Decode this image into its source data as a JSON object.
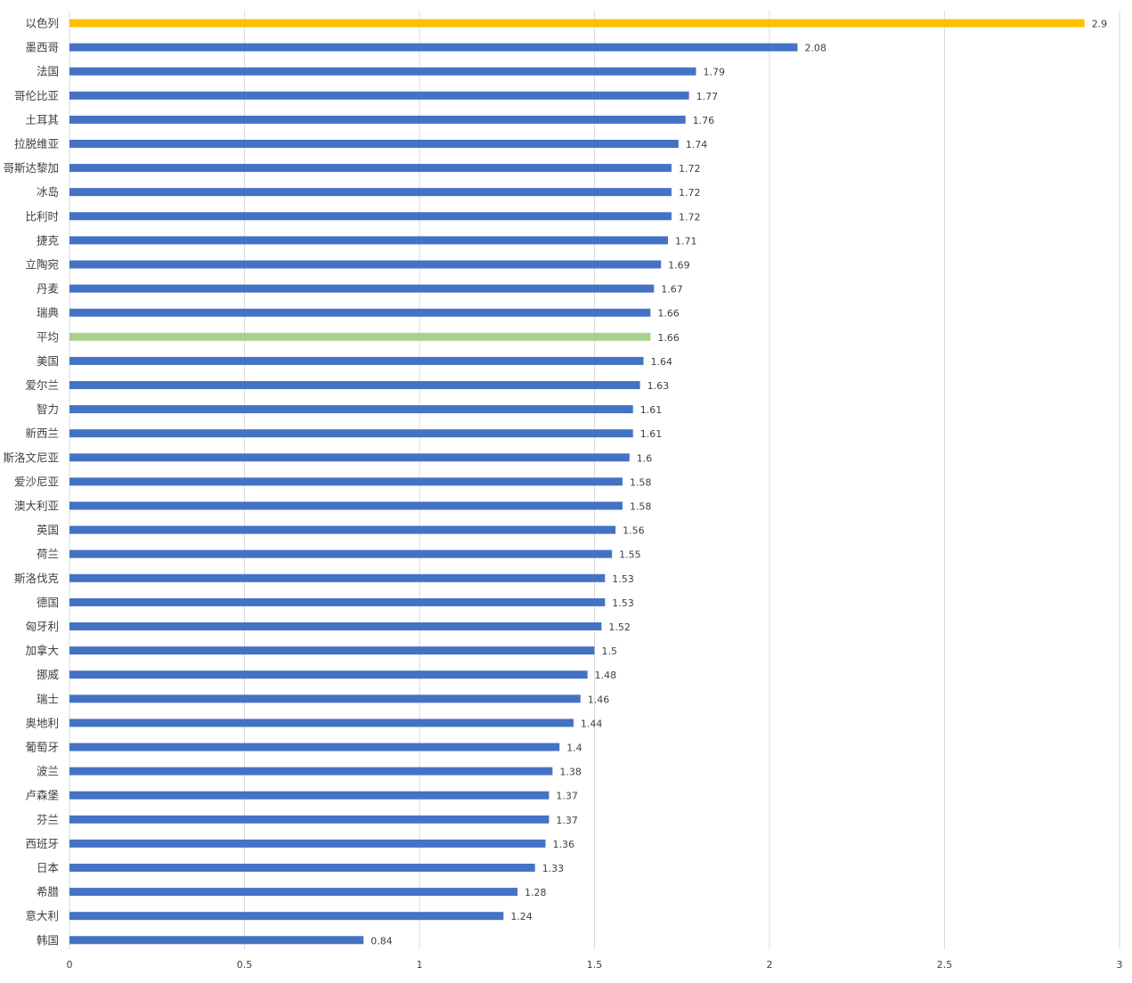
{
  "chart_data": {
    "type": "bar",
    "orientation": "horizontal",
    "title": "",
    "xlabel": "",
    "ylabel": "",
    "xlim": [
      0,
      3
    ],
    "x_ticks": [
      0,
      0.5,
      1,
      1.5,
      2,
      2.5,
      3
    ],
    "grid": "vertical",
    "legend": "none",
    "colors": {
      "default": "#4472C4",
      "highlight": "#FFC000",
      "average": "#A9D18E",
      "gridline": "#D9D9D9",
      "text": "#404040"
    },
    "categories": [
      "以色列",
      "墨西哥",
      "法国",
      "哥伦比亚",
      "土耳其",
      "拉脱维亚",
      "哥斯达黎加",
      "冰岛",
      "比利时",
      "捷克",
      "立陶宛",
      "丹麦",
      "瑞典",
      "平均",
      "美国",
      "爱尔兰",
      "智力",
      "新西兰",
      "斯洛文尼亚",
      "爱沙尼亚",
      "澳大利亚",
      "英国",
      "荷兰",
      "斯洛伐克",
      "德国",
      "匈牙利",
      "加拿大",
      "挪威",
      "瑞士",
      "奥地利",
      "葡萄牙",
      "波兰",
      "卢森堡",
      "芬兰",
      "西班牙",
      "日本",
      "希腊",
      "意大利",
      "韩国"
    ],
    "values": [
      2.9,
      2.08,
      1.79,
      1.77,
      1.76,
      1.74,
      1.72,
      1.72,
      1.72,
      1.71,
      1.69,
      1.67,
      1.66,
      1.66,
      1.64,
      1.63,
      1.61,
      1.61,
      1.6,
      1.58,
      1.58,
      1.56,
      1.55,
      1.53,
      1.53,
      1.52,
      1.5,
      1.48,
      1.46,
      1.44,
      1.4,
      1.38,
      1.37,
      1.37,
      1.36,
      1.33,
      1.28,
      1.24,
      0.84
    ],
    "value_labels": [
      "2.9",
      "2.08",
      "1.79",
      "1.77",
      "1.76",
      "1.74",
      "1.72",
      "1.72",
      "1.72",
      "1.71",
      "1.69",
      "1.67",
      "1.66",
      "1.66",
      "1.64",
      "1.63",
      "1.61",
      "1.61",
      "1.6",
      "1.58",
      "1.58",
      "1.56",
      "1.55",
      "1.53",
      "1.53",
      "1.52",
      "1.5",
      "1.48",
      "1.46",
      "1.44",
      "1.4",
      "1.38",
      "1.37",
      "1.37",
      "1.36",
      "1.33",
      "1.28",
      "1.24",
      "0.84"
    ],
    "tick_labels": [
      "0",
      "0.5",
      "1",
      "1.5",
      "2",
      "2.5",
      "3"
    ],
    "bar_colors": [
      "highlight",
      "default",
      "default",
      "default",
      "default",
      "default",
      "default",
      "default",
      "default",
      "default",
      "default",
      "default",
      "default",
      "average",
      "default",
      "default",
      "default",
      "default",
      "default",
      "default",
      "default",
      "default",
      "default",
      "default",
      "default",
      "default",
      "default",
      "default",
      "default",
      "default",
      "default",
      "default",
      "default",
      "default",
      "default",
      "default",
      "default",
      "default",
      "default"
    ]
  }
}
